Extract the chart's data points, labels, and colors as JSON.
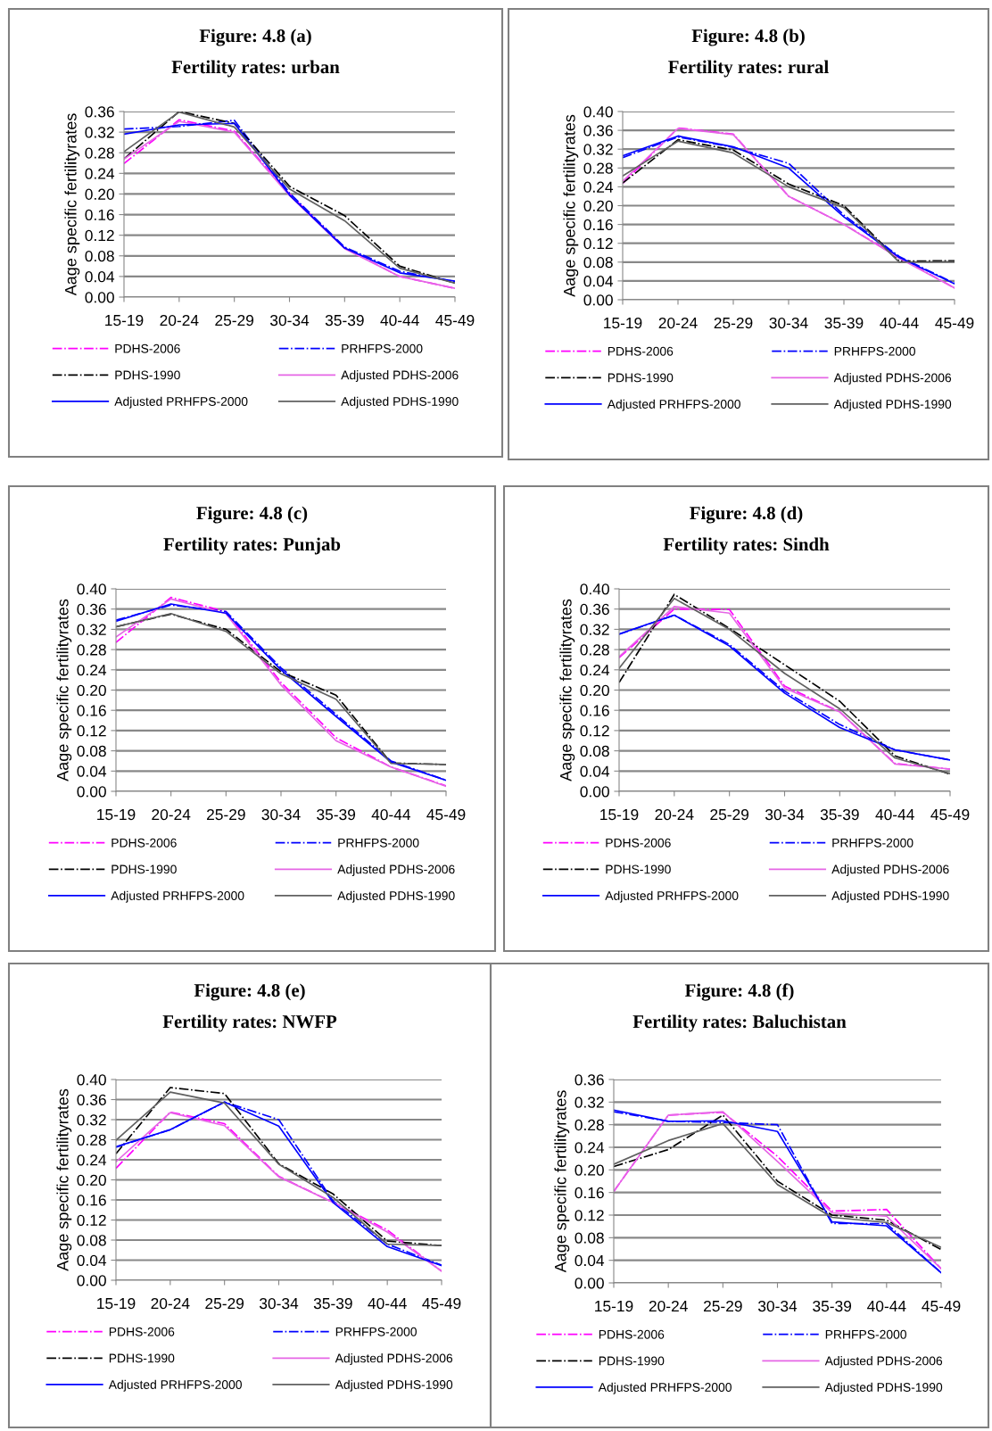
{
  "chart_data": [
    {
      "type": "line",
      "title": "Figure: 4.8 (a)",
      "subtitle": "Fertility rates: urban",
      "ylabel": "Aage specific fertilityrates",
      "categories": [
        "15-19",
        "20-24",
        "25-29",
        "30-34",
        "35-39",
        "40-44",
        "45-49"
      ],
      "ylim": [
        0,
        0.36
      ],
      "yticks": [
        {
          "value": 0,
          "label": "0.00"
        },
        {
          "value": 0.04,
          "label": "0.04"
        },
        {
          "value": 0.08,
          "label": "0.08"
        },
        {
          "value": 0.12,
          "label": "0.12"
        },
        {
          "value": 0.16,
          "label": "0.16"
        },
        {
          "value": 0.2,
          "label": "0.20"
        },
        {
          "value": 0.24,
          "label": "0.24"
        },
        {
          "value": 0.28,
          "label": "0.28"
        },
        {
          "value": 0.32,
          "label": "0.32"
        },
        {
          "value": 0.36,
          "label": "0.36"
        }
      ],
      "grid": "y",
      "legend": "bottom",
      "marker": "none",
      "series": [
        {
          "name": "PDHS-2006",
          "color": "#ff00ff",
          "line_style": "dashdot",
          "values": [
            0.259,
            0.344,
            0.322,
            0.2,
            0.095,
            0.04,
            0.017
          ]
        },
        {
          "name": "PRHFPS-2000",
          "color": "#0000ff",
          "line_style": "dashdot",
          "values": [
            0.326,
            0.331,
            0.343,
            0.202,
            0.097,
            0.05,
            0.03
          ]
        },
        {
          "name": "PDHS-1990",
          "color": "#000000",
          "line_style": "dashdot",
          "values": [
            0.268,
            0.36,
            0.337,
            0.215,
            0.158,
            0.06,
            0.027
          ]
        },
        {
          "name": "Adjusted PDHS-2006",
          "color": "#e566e5",
          "line_style": "solid",
          "values": [
            0.268,
            0.341,
            0.32,
            0.197,
            0.094,
            0.04,
            0.017
          ]
        },
        {
          "name": "Adjusted PRHFPS-2000",
          "color": "#0000ff",
          "line_style": "solid",
          "values": [
            0.316,
            0.334,
            0.337,
            0.198,
            0.095,
            0.047,
            0.031
          ]
        },
        {
          "name": "Adjusted PDHS-1990",
          "color": "#606060",
          "line_style": "solid",
          "values": [
            0.282,
            0.359,
            0.33,
            0.21,
            0.148,
            0.056,
            0.027
          ]
        }
      ]
    },
    {
      "type": "line",
      "title": "Figure: 4.8 (b)",
      "subtitle": "Fertility rates: rural",
      "ylabel": "Aage specific fertilityrates",
      "categories": [
        "15-19",
        "20-24",
        "25-29",
        "30-34",
        "35-39",
        "40-44",
        "45-49"
      ],
      "ylim": [
        0,
        0.4
      ],
      "yticks": [
        {
          "value": 0,
          "label": "0.00"
        },
        {
          "value": 0.04,
          "label": "0.04"
        },
        {
          "value": 0.08,
          "label": "0.08"
        },
        {
          "value": 0.12,
          "label": "0.12"
        },
        {
          "value": 0.16,
          "label": "0.16"
        },
        {
          "value": 0.2,
          "label": "0.20"
        },
        {
          "value": 0.24,
          "label": "0.24"
        },
        {
          "value": 0.28,
          "label": "0.28"
        },
        {
          "value": 0.32,
          "label": "0.32"
        },
        {
          "value": 0.36,
          "label": "0.36"
        },
        {
          "value": 0.4,
          "label": "0.40"
        }
      ],
      "grid": "y",
      "legend": "bottom",
      "marker": "none",
      "series": [
        {
          "name": "PDHS-2006",
          "color": "#ff00ff",
          "line_style": "dashdot",
          "values": [
            0.247,
            0.365,
            0.352,
            0.22,
            0.16,
            0.09,
            0.025
          ]
        },
        {
          "name": "PRHFPS-2000",
          "color": "#0000ff",
          "line_style": "dashdot",
          "values": [
            0.302,
            0.346,
            0.324,
            0.29,
            0.18,
            0.092,
            0.035
          ]
        },
        {
          "name": "PDHS-1990",
          "color": "#000000",
          "line_style": "dashdot",
          "values": [
            0.248,
            0.34,
            0.318,
            0.246,
            0.2,
            0.082,
            0.083
          ]
        },
        {
          "name": "Adjusted PDHS-2006",
          "color": "#e566e5",
          "line_style": "solid",
          "values": [
            0.252,
            0.364,
            0.351,
            0.22,
            0.16,
            0.088,
            0.025
          ]
        },
        {
          "name": "Adjusted PRHFPS-2000",
          "color": "#0000ff",
          "line_style": "solid",
          "values": [
            0.306,
            0.348,
            0.325,
            0.28,
            0.176,
            0.09,
            0.034
          ]
        },
        {
          "name": "Adjusted PDHS-1990",
          "color": "#606060",
          "line_style": "solid",
          "values": [
            0.263,
            0.337,
            0.312,
            0.24,
            0.196,
            0.08,
            0.081
          ]
        }
      ]
    },
    {
      "type": "line",
      "title": "Figure: 4.8 (c)",
      "subtitle": "Fertility rates: Punjab",
      "ylabel": "Aage specific fertilityrates",
      "categories": [
        "15-19",
        "20-24",
        "25-29",
        "30-34",
        "35-39",
        "40-44",
        "45-49"
      ],
      "ylim": [
        0,
        0.4
      ],
      "yticks": [
        {
          "value": 0,
          "label": "0.00"
        },
        {
          "value": 0.04,
          "label": "0.04"
        },
        {
          "value": 0.08,
          "label": "0.08"
        },
        {
          "value": 0.12,
          "label": "0.12"
        },
        {
          "value": 0.16,
          "label": "0.16"
        },
        {
          "value": 0.2,
          "label": "0.20"
        },
        {
          "value": 0.24,
          "label": "0.24"
        },
        {
          "value": 0.28,
          "label": "0.28"
        },
        {
          "value": 0.32,
          "label": "0.32"
        },
        {
          "value": 0.36,
          "label": "0.36"
        },
        {
          "value": 0.4,
          "label": "0.40"
        }
      ],
      "grid": "y",
      "legend": "bottom",
      "marker": "none",
      "series": [
        {
          "name": "PDHS-2006",
          "color": "#ff00ff",
          "line_style": "dashdot",
          "values": [
            0.294,
            0.383,
            0.355,
            0.215,
            0.106,
            0.048,
            0.011
          ]
        },
        {
          "name": "PRHFPS-2000",
          "color": "#0000ff",
          "line_style": "dashdot",
          "values": [
            0.338,
            0.368,
            0.355,
            0.244,
            0.152,
            0.06,
            0.022
          ]
        },
        {
          "name": "PDHS-1990",
          "color": "#000000",
          "line_style": "dashdot",
          "values": [
            0.325,
            0.35,
            0.32,
            0.236,
            0.19,
            0.056,
            0.053
          ]
        },
        {
          "name": "Adjusted PDHS-2006",
          "color": "#e566e5",
          "line_style": "solid",
          "values": [
            0.305,
            0.38,
            0.351,
            0.21,
            0.1,
            0.048,
            0.01
          ]
        },
        {
          "name": "Adjusted PRHFPS-2000",
          "color": "#0000ff",
          "line_style": "solid",
          "values": [
            0.336,
            0.37,
            0.352,
            0.24,
            0.148,
            0.058,
            0.022
          ]
        },
        {
          "name": "Adjusted PDHS-1990",
          "color": "#606060",
          "line_style": "solid",
          "values": [
            0.325,
            0.351,
            0.316,
            0.232,
            0.182,
            0.055,
            0.053
          ]
        }
      ]
    },
    {
      "type": "line",
      "title": "Figure: 4.8 (d)",
      "subtitle": "Fertility rates: Sindh",
      "ylabel": "Aage specific fertilityrates",
      "categories": [
        "15-19",
        "20-24",
        "25-29",
        "30-34",
        "35-39",
        "40-44",
        "45-49"
      ],
      "ylim": [
        0,
        0.4
      ],
      "yticks": [
        {
          "value": 0,
          "label": "0.00"
        },
        {
          "value": 0.04,
          "label": "0.04"
        },
        {
          "value": 0.08,
          "label": "0.08"
        },
        {
          "value": 0.12,
          "label": "0.12"
        },
        {
          "value": 0.16,
          "label": "0.16"
        },
        {
          "value": 0.2,
          "label": "0.20"
        },
        {
          "value": 0.24,
          "label": "0.24"
        },
        {
          "value": 0.28,
          "label": "0.28"
        },
        {
          "value": 0.32,
          "label": "0.32"
        },
        {
          "value": 0.36,
          "label": "0.36"
        },
        {
          "value": 0.4,
          "label": "0.40"
        }
      ],
      "grid": "y",
      "legend": "bottom",
      "marker": "none",
      "series": [
        {
          "name": "PDHS-2006",
          "color": "#ff00ff",
          "line_style": "dashdot",
          "values": [
            0.264,
            0.36,
            0.359,
            0.208,
            0.157,
            0.055,
            0.044
          ]
        },
        {
          "name": "PRHFPS-2000",
          "color": "#0000ff",
          "line_style": "dashdot",
          "values": [
            0.31,
            0.348,
            0.29,
            0.198,
            0.132,
            0.082,
            0.062
          ]
        },
        {
          "name": "PDHS-1990",
          "color": "#000000",
          "line_style": "dashdot",
          "values": [
            0.215,
            0.389,
            0.322,
            0.25,
            0.178,
            0.07,
            0.034
          ]
        },
        {
          "name": "Adjusted PDHS-2006",
          "color": "#e566e5",
          "line_style": "solid",
          "values": [
            0.266,
            0.365,
            0.352,
            0.204,
            0.157,
            0.054,
            0.044
          ]
        },
        {
          "name": "Adjusted PRHFPS-2000",
          "color": "#0000ff",
          "line_style": "solid",
          "values": [
            0.311,
            0.348,
            0.287,
            0.194,
            0.126,
            0.082,
            0.062
          ]
        },
        {
          "name": "Adjusted PDHS-1990",
          "color": "#606060",
          "line_style": "solid",
          "values": [
            0.243,
            0.381,
            0.32,
            0.233,
            0.163,
            0.066,
            0.035
          ]
        }
      ]
    },
    {
      "type": "line",
      "title": "Figure: 4.8 (e)",
      "subtitle": "Fertility rates: NWFP",
      "ylabel": "Aage specific fertilityrates",
      "categories": [
        "15-19",
        "20-24",
        "25-29",
        "30-34",
        "35-39",
        "40-44",
        "45-49"
      ],
      "ylim": [
        0,
        0.4
      ],
      "yticks": [
        {
          "value": 0,
          "label": "0.00"
        },
        {
          "value": 0.04,
          "label": "0.04"
        },
        {
          "value": 0.08,
          "label": "0.08"
        },
        {
          "value": 0.12,
          "label": "0.12"
        },
        {
          "value": 0.16,
          "label": "0.16"
        },
        {
          "value": 0.2,
          "label": "0.20"
        },
        {
          "value": 0.24,
          "label": "0.24"
        },
        {
          "value": 0.28,
          "label": "0.28"
        },
        {
          "value": 0.32,
          "label": "0.32"
        },
        {
          "value": 0.36,
          "label": "0.36"
        },
        {
          "value": 0.4,
          "label": "0.40"
        }
      ],
      "grid": "y",
      "legend": "bottom",
      "marker": "none",
      "series": [
        {
          "name": "PDHS-2006",
          "color": "#ff00ff",
          "line_style": "dashdot",
          "values": [
            0.223,
            0.335,
            0.312,
            0.207,
            0.155,
            0.1,
            0.018
          ]
        },
        {
          "name": "PRHFPS-2000",
          "color": "#0000ff",
          "line_style": "dashdot",
          "values": [
            0.265,
            0.3,
            0.355,
            0.32,
            0.158,
            0.072,
            0.03
          ]
        },
        {
          "name": "PDHS-1990",
          "color": "#000000",
          "line_style": "dashdot",
          "values": [
            0.252,
            0.384,
            0.372,
            0.232,
            0.172,
            0.078,
            0.069
          ]
        },
        {
          "name": "Adjusted PDHS-2006",
          "color": "#e566e5",
          "line_style": "solid",
          "values": [
            0.236,
            0.334,
            0.308,
            0.206,
            0.155,
            0.096,
            0.018
          ]
        },
        {
          "name": "Adjusted PRHFPS-2000",
          "color": "#0000ff",
          "line_style": "solid",
          "values": [
            0.266,
            0.3,
            0.355,
            0.307,
            0.155,
            0.067,
            0.029
          ]
        },
        {
          "name": "Adjusted PDHS-1990",
          "color": "#606060",
          "line_style": "solid",
          "values": [
            0.279,
            0.375,
            0.353,
            0.231,
            0.165,
            0.072,
            0.069
          ]
        }
      ]
    },
    {
      "type": "line",
      "title": "Figure: 4.8 (f)",
      "subtitle": "Fertility rates: Baluchistan",
      "ylabel": "Aage specific fertilityrates",
      "categories": [
        "15-19",
        "20-24",
        "25-29",
        "30-34",
        "35-39",
        "40-44",
        "45-49"
      ],
      "ylim": [
        0,
        0.36
      ],
      "yticks": [
        {
          "value": 0,
          "label": "0.00"
        },
        {
          "value": 0.04,
          "label": "0.04"
        },
        {
          "value": 0.08,
          "label": "0.08"
        },
        {
          "value": 0.12,
          "label": "0.12"
        },
        {
          "value": 0.16,
          "label": "0.16"
        },
        {
          "value": 0.2,
          "label": "0.20"
        },
        {
          "value": 0.24,
          "label": "0.24"
        },
        {
          "value": 0.28,
          "label": "0.28"
        },
        {
          "value": 0.32,
          "label": "0.32"
        },
        {
          "value": 0.36,
          "label": "0.36"
        }
      ],
      "grid": "y",
      "legend": "bottom",
      "marker": "none",
      "series": [
        {
          "name": "PDHS-2006",
          "color": "#ff00ff",
          "line_style": "dashdot",
          "values": [
            0.162,
            0.297,
            0.302,
            0.224,
            0.127,
            0.13,
            0.025
          ]
        },
        {
          "name": "PRHFPS-2000",
          "color": "#0000ff",
          "line_style": "dashdot",
          "values": [
            0.303,
            0.286,
            0.284,
            0.28,
            0.105,
            0.105,
            0.018
          ]
        },
        {
          "name": "PDHS-1990",
          "color": "#000000",
          "line_style": "dashdot",
          "values": [
            0.206,
            0.236,
            0.297,
            0.18,
            0.12,
            0.111,
            0.059
          ]
        },
        {
          "name": "Adjusted PDHS-2006",
          "color": "#e566e5",
          "line_style": "solid",
          "values": [
            0.162,
            0.297,
            0.303,
            0.215,
            0.124,
            0.118,
            0.025
          ]
        },
        {
          "name": "Adjusted PRHFPS-2000",
          "color": "#0000ff",
          "line_style": "solid",
          "values": [
            0.306,
            0.286,
            0.287,
            0.268,
            0.108,
            0.101,
            0.018
          ]
        },
        {
          "name": "Adjusted PDHS-1990",
          "color": "#606060",
          "line_style": "solid",
          "values": [
            0.21,
            0.252,
            0.282,
            0.174,
            0.116,
            0.107,
            0.063
          ]
        }
      ]
    }
  ]
}
